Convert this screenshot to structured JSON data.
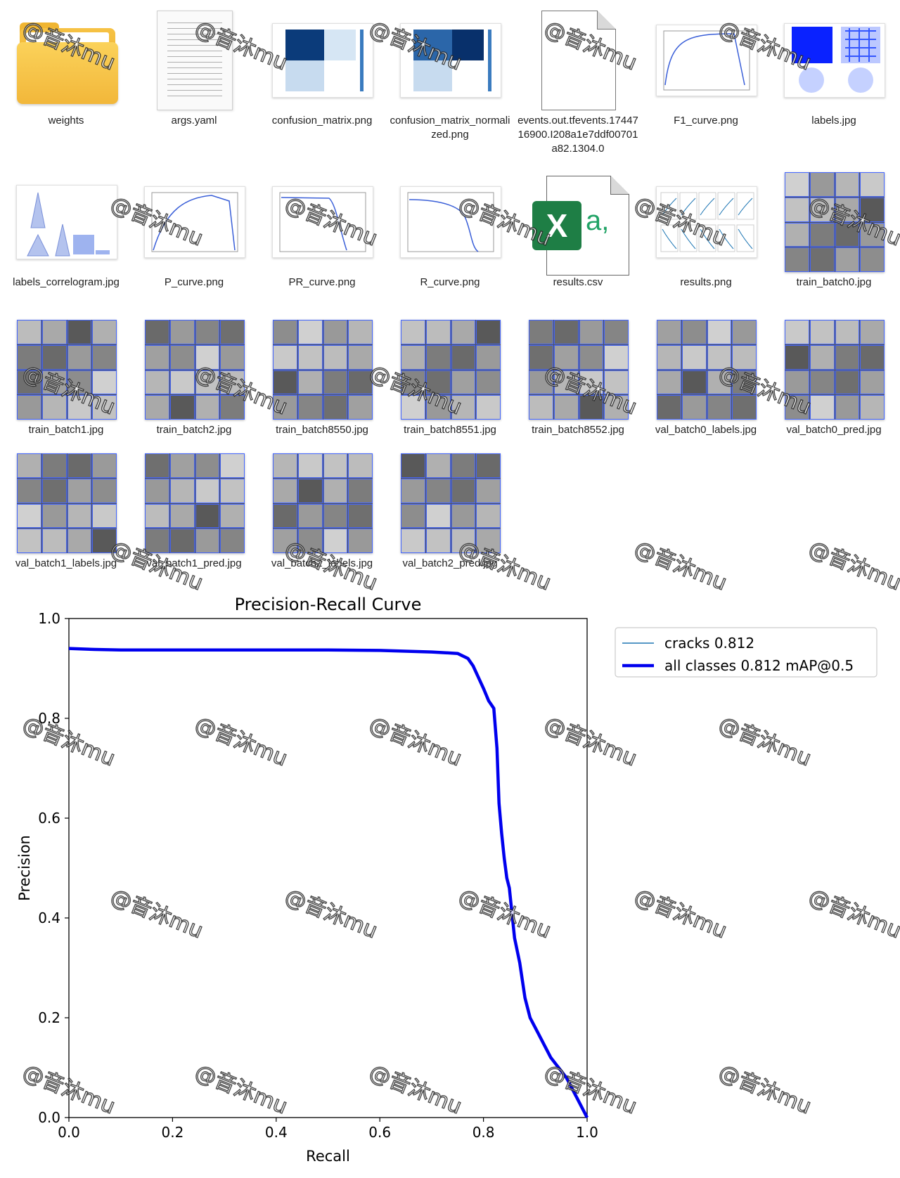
{
  "files": [
    {
      "name": "weights",
      "kind": "folder"
    },
    {
      "name": "args.yaml",
      "kind": "doc"
    },
    {
      "name": "confusion_matrix.png",
      "kind": "image"
    },
    {
      "name": "confusion_matrix_normalized.png",
      "kind": "image"
    },
    {
      "name": "events.out.tfevents.1744716900.I208a1e7ddf00701a82.1304.0",
      "kind": "blank"
    },
    {
      "name": "F1_curve.png",
      "kind": "image"
    },
    {
      "name": "labels.jpg",
      "kind": "image"
    },
    {
      "name": "labels_correlogram.jpg",
      "kind": "image"
    },
    {
      "name": "P_curve.png",
      "kind": "image"
    },
    {
      "name": "PR_curve.png",
      "kind": "image"
    },
    {
      "name": "R_curve.png",
      "kind": "image"
    },
    {
      "name": "results.csv",
      "kind": "excel"
    },
    {
      "name": "results.png",
      "kind": "image"
    },
    {
      "name": "train_batch0.jpg",
      "kind": "mosaic"
    },
    {
      "name": "train_batch1.jpg",
      "kind": "mosaic"
    },
    {
      "name": "train_batch2.jpg",
      "kind": "mosaic"
    },
    {
      "name": "train_batch8550.jpg",
      "kind": "mosaic"
    },
    {
      "name": "train_batch8551.jpg",
      "kind": "mosaic"
    },
    {
      "name": "train_batch8552.jpg",
      "kind": "mosaic"
    },
    {
      "name": "val_batch0_labels.jpg",
      "kind": "mosaic"
    },
    {
      "name": "val_batch0_pred.jpg",
      "kind": "mosaic"
    },
    {
      "name": "val_batch1_labels.jpg",
      "kind": "mosaic"
    },
    {
      "name": "val_batch1_pred.jpg",
      "kind": "mosaic"
    },
    {
      "name": "val_batch2_labels.jpg",
      "kind": "mosaic"
    },
    {
      "name": "val_batch2_pred.jpg",
      "kind": "mosaic"
    }
  ],
  "icons": {
    "excel_letter": "X",
    "excel_suffix": "a,"
  },
  "watermark": "@音沐mu",
  "chart_data": {
    "type": "line",
    "title": "Precision-Recall Curve",
    "xlabel": "Recall",
    "ylabel": "Precision",
    "xlim": [
      0,
      1
    ],
    "ylim": [
      0,
      1
    ],
    "xticks": [
      "0.0",
      "0.2",
      "0.4",
      "0.6",
      "0.8",
      "1.0"
    ],
    "yticks": [
      "0.0",
      "0.2",
      "0.4",
      "0.6",
      "0.8",
      "1.0"
    ],
    "legend_position": "top-right",
    "series": [
      {
        "name": "cracks 0.812",
        "color": "#1f77b4",
        "linewidth": "thin",
        "x": [
          0.0,
          0.05,
          0.1,
          0.2,
          0.3,
          0.4,
          0.5,
          0.6,
          0.7,
          0.75,
          0.77,
          0.78,
          0.8,
          0.81,
          0.82,
          0.826,
          0.83,
          0.835,
          0.84,
          0.845,
          0.85,
          0.86,
          0.87,
          0.88,
          0.89,
          0.9,
          0.91,
          0.93,
          0.96,
          0.98,
          1.0
        ],
        "y": [
          0.94,
          0.938,
          0.937,
          0.937,
          0.937,
          0.937,
          0.937,
          0.936,
          0.933,
          0.93,
          0.92,
          0.905,
          0.86,
          0.835,
          0.82,
          0.74,
          0.63,
          0.57,
          0.52,
          0.48,
          0.46,
          0.36,
          0.31,
          0.24,
          0.2,
          0.18,
          0.16,
          0.12,
          0.08,
          0.04,
          0.0
        ]
      },
      {
        "name": "all classes 0.812 mAP@0.5",
        "color": "#0000ee",
        "linewidth": "thick",
        "x": [
          0.0,
          0.05,
          0.1,
          0.2,
          0.3,
          0.4,
          0.5,
          0.6,
          0.7,
          0.75,
          0.77,
          0.78,
          0.8,
          0.81,
          0.82,
          0.826,
          0.83,
          0.835,
          0.84,
          0.845,
          0.85,
          0.86,
          0.87,
          0.88,
          0.89,
          0.9,
          0.91,
          0.93,
          0.96,
          0.98,
          1.0
        ],
        "y": [
          0.94,
          0.938,
          0.937,
          0.937,
          0.937,
          0.937,
          0.937,
          0.936,
          0.933,
          0.93,
          0.92,
          0.905,
          0.86,
          0.835,
          0.82,
          0.74,
          0.63,
          0.57,
          0.52,
          0.48,
          0.46,
          0.36,
          0.31,
          0.24,
          0.2,
          0.18,
          0.16,
          0.12,
          0.08,
          0.04,
          0.0
        ]
      }
    ]
  }
}
